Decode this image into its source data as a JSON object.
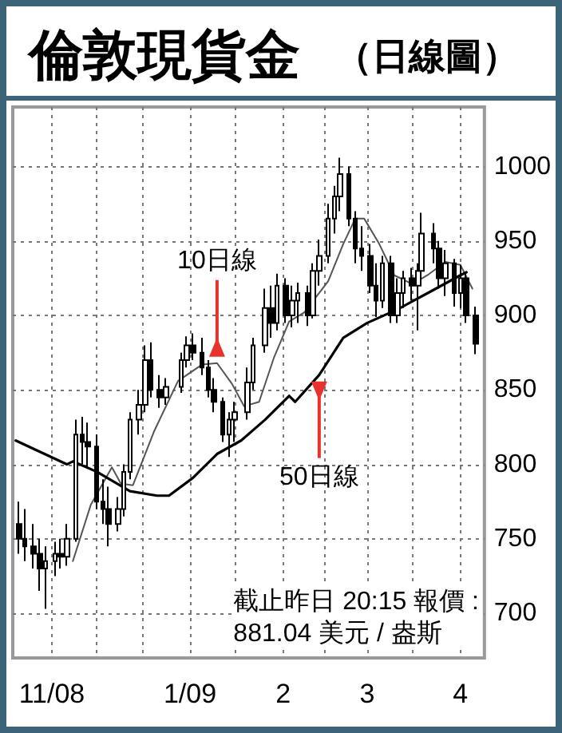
{
  "chart_data": {
    "type": "candlestick",
    "title": "倫敦現貨金",
    "subtitle": "（日線圖）",
    "x": [
      "2008-11-05",
      "2008-11-07",
      "2008-11-10",
      "2008-11-12",
      "2008-11-14",
      "2008-11-17",
      "2008-11-19",
      "2008-11-21",
      "2008-11-24",
      "2008-11-26",
      "2008-11-28",
      "2008-12-01",
      "2008-12-03",
      "2008-12-05",
      "2008-12-08",
      "2008-12-10",
      "2008-12-12",
      "2008-12-15",
      "2008-12-17",
      "2008-12-19",
      "2008-12-22",
      "2008-12-24",
      "2008-12-29",
      "2008-12-31",
      "2009-01-02",
      "2009-01-05",
      "2009-01-07",
      "2009-01-09",
      "2009-01-12",
      "2009-01-14",
      "2009-01-16",
      "2009-01-20",
      "2009-01-22",
      "2009-01-26",
      "2009-01-28",
      "2009-01-30",
      "2009-02-02",
      "2009-02-04",
      "2009-02-06",
      "2009-02-09",
      "2009-02-11",
      "2009-02-13",
      "2009-02-16",
      "2009-02-18",
      "2009-02-20",
      "2009-02-23",
      "2009-02-25",
      "2009-02-27",
      "2009-03-02",
      "2009-03-04",
      "2009-03-06",
      "2009-03-09",
      "2009-03-11",
      "2009-03-13",
      "2009-03-16",
      "2009-03-18",
      "2009-03-19",
      "2009-03-23",
      "2009-03-25",
      "2009-03-27",
      "2009-03-30",
      "2009-04-01",
      "2009-04-03",
      "2009-04-06"
    ],
    "ohlc": [
      [
        760,
        775,
        740,
        750
      ],
      [
        750,
        770,
        735,
        745
      ],
      [
        745,
        760,
        730,
        740
      ],
      [
        740,
        750,
        715,
        730
      ],
      [
        730,
        745,
        703,
        735
      ],
      [
        735,
        748,
        725,
        740
      ],
      [
        740,
        750,
        730,
        738
      ],
      [
        738,
        760,
        732,
        750
      ],
      [
        750,
        830,
        748,
        820
      ],
      [
        820,
        832,
        800,
        815
      ],
      [
        815,
        828,
        798,
        812
      ],
      [
        812,
        820,
        770,
        775
      ],
      [
        775,
        790,
        760,
        770
      ],
      [
        770,
        785,
        745,
        760
      ],
      [
        760,
        778,
        755,
        770
      ],
      [
        770,
        800,
        765,
        795
      ],
      [
        795,
        835,
        790,
        830
      ],
      [
        830,
        850,
        820,
        840
      ],
      [
        840,
        880,
        835,
        870
      ],
      [
        870,
        882,
        845,
        850
      ],
      [
        850,
        860,
        838,
        845
      ],
      [
        845,
        858,
        840,
        852
      ],
      [
        852,
        875,
        848,
        870
      ],
      [
        870,
        886,
        865,
        880
      ],
      [
        880,
        888,
        870,
        875
      ],
      [
        875,
        885,
        860,
        865
      ],
      [
        865,
        870,
        845,
        850
      ],
      [
        850,
        858,
        835,
        842
      ],
      [
        842,
        845,
        815,
        820
      ],
      [
        820,
        835,
        805,
        830
      ],
      [
        830,
        842,
        815,
        835
      ],
      [
        835,
        865,
        830,
        855
      ],
      [
        855,
        885,
        850,
        880
      ],
      [
        880,
        918,
        875,
        905
      ],
      [
        905,
        920,
        885,
        895
      ],
      [
        895,
        928,
        890,
        920
      ],
      [
        920,
        925,
        895,
        900
      ],
      [
        900,
        920,
        892,
        910
      ],
      [
        910,
        922,
        895,
        915
      ],
      [
        915,
        920,
        893,
        900
      ],
      [
        900,
        935,
        898,
        930
      ],
      [
        930,
        951,
        920,
        940
      ],
      [
        940,
        975,
        935,
        965
      ],
      [
        965,
        987,
        955,
        980
      ],
      [
        980,
        1006,
        970,
        995
      ],
      [
        995,
        1000,
        960,
        965
      ],
      [
        965,
        970,
        935,
        945
      ],
      [
        945,
        960,
        930,
        940
      ],
      [
        940,
        948,
        915,
        920
      ],
      [
        920,
        935,
        899,
        910
      ],
      [
        910,
        940,
        905,
        935
      ],
      [
        935,
        940,
        895,
        900
      ],
      [
        900,
        925,
        895,
        915
      ],
      [
        915,
        930,
        905,
        925
      ],
      [
        925,
        932,
        910,
        920
      ],
      [
        920,
        935,
        890,
        930
      ],
      [
        930,
        969,
        925,
        955
      ],
      [
        955,
        962,
        935,
        945
      ],
      [
        945,
        950,
        918,
        925
      ],
      [
        925,
        944,
        913,
        935
      ],
      [
        935,
        938,
        906,
        915
      ],
      [
        915,
        934,
        905,
        925
      ],
      [
        925,
        928,
        895,
        900
      ],
      [
        900,
        906,
        874,
        881
      ]
    ],
    "color": "#000000",
    "series": [
      {
        "type": "line",
        "color": "#555555",
        "x": [
          "2008-11-23",
          "2008-11-29",
          "2008-12-06",
          "2008-12-09",
          "2008-12-13",
          "2008-12-20",
          "2008-12-28",
          "2009-01-05",
          "2009-01-10",
          "2009-01-15",
          "2009-01-19",
          "2009-01-24",
          "2009-01-29",
          "2009-02-03",
          "2009-02-08",
          "2009-02-16",
          "2009-02-21",
          "2009-02-25",
          "2009-02-28",
          "2009-03-05",
          "2009-03-10",
          "2009-03-16",
          "2009-03-21",
          "2009-03-27",
          "2009-04-01",
          "2009-04-05"
        ],
        "values": [
          735,
          773,
          798,
          787,
          786,
          822,
          856,
          867,
          868,
          854,
          839,
          842,
          872,
          896,
          902,
          923,
          948,
          965,
          965,
          948,
          927,
          921,
          927,
          936,
          934,
          918
        ]
      },
      {
        "type": "line",
        "color": "#000000",
        "x": [
          "2008-11-04",
          "2008-11-21",
          "2008-11-23",
          "2008-12-01",
          "2008-12-12",
          "2008-12-21",
          "2008-12-25",
          "2009-01-02",
          "2009-01-10",
          "2009-01-18",
          "2009-01-26",
          "2009-02-03",
          "2009-02-05",
          "2009-02-13",
          "2009-02-21",
          "2009-03-01",
          "2009-03-11",
          "2009-03-22",
          "2009-04-01",
          "2009-04-03"
        ],
        "values": [
          816,
          800,
          802,
          795,
          782,
          779,
          779,
          791,
          807,
          816,
          830,
          846,
          842,
          860,
          885,
          895,
          904,
          916,
          927,
          929
        ]
      }
    ],
    "xlim": [
      "2008-11-03",
      "2009-04-09"
    ],
    "xticks": [
      {
        "value": "2008-11-16",
        "label": "11/08"
      },
      {
        "value": "2008-12-01",
        "label": null
      },
      {
        "value": "2008-12-16",
        "label": null
      },
      {
        "value": "2009-01-01",
        "label": "1/09"
      },
      {
        "value": "2009-01-16",
        "label": null
      },
      {
        "value": "2009-02-01",
        "label": "2"
      },
      {
        "value": "2009-02-15",
        "label": null
      },
      {
        "value": "2009-03-01",
        "label": "3"
      },
      {
        "value": "2009-03-16",
        "label": null
      },
      {
        "value": "2009-04-01",
        "label": "4"
      }
    ],
    "ylim": [
      670,
      1040
    ],
    "yticks": [
      700,
      750,
      800,
      850,
      900,
      950,
      1000
    ],
    "grid": true,
    "marker": "none",
    "annotations": [
      {
        "text": "10日線",
        "x": "2009-01-10",
        "y": 868
      },
      {
        "text": "50日線",
        "x": "2009-02-13",
        "y": 860
      },
      "截止昨日 20:15 報價 :\n881.04 美元 / 盎斯"
    ]
  }
}
